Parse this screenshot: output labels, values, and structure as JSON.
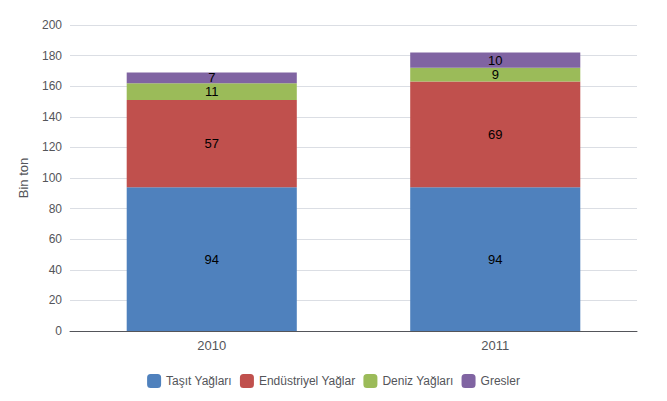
{
  "chart_data": {
    "type": "bar",
    "stacked": true,
    "categories": [
      "2010",
      "2011"
    ],
    "series": [
      {
        "name": "Taşıt Yağları",
        "color": "#4F81BD",
        "values": [
          94,
          94
        ]
      },
      {
        "name": "Endüstriyel Yağlar",
        "color": "#C0504D",
        "values": [
          57,
          69
        ]
      },
      {
        "name": "Deniz Yağları",
        "color": "#9BBB59",
        "values": [
          11,
          9
        ]
      },
      {
        "name": "Gresler",
        "color": "#8064A2",
        "values": [
          7,
          10
        ]
      }
    ],
    "ylabel": "Bin ton",
    "ylim": [
      0,
      200
    ],
    "yticks": [
      0,
      20,
      40,
      60,
      80,
      100,
      120,
      140,
      160,
      180,
      200
    ],
    "grid": true,
    "legend": "bottom",
    "data_labels": true
  }
}
